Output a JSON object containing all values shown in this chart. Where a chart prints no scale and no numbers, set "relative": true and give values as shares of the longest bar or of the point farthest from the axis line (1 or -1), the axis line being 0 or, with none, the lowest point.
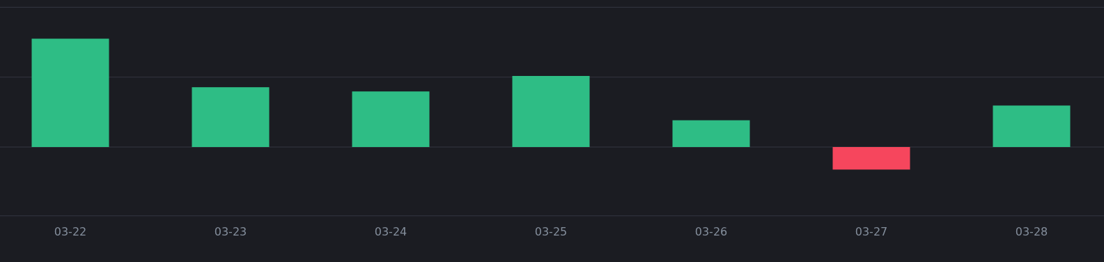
{
  "chart_data": {
    "type": "bar",
    "relative": true,
    "ref_lines": [
      {
        "axis": "y",
        "value": 1.29,
        "color": "#343641"
      },
      {
        "axis": "y",
        "value": 0.645,
        "color": "#343641"
      },
      {
        "axis": "y",
        "value": -0.635,
        "color": "#343641"
      }
    ],
    "categories": [
      "03-22",
      "03-23",
      "03-24",
      "03-25",
      "03-26",
      "03-27",
      "03-28"
    ],
    "values": [
      1,
      0.552,
      0.513,
      0.656,
      0.247,
      -0.208,
      0.383
    ],
    "colors": [
      "#2ebd85",
      "#2ebd85",
      "#2ebd85",
      "#2ebd85",
      "#2ebd85",
      "#f6465d",
      "#2ebd85"
    ]
  }
}
